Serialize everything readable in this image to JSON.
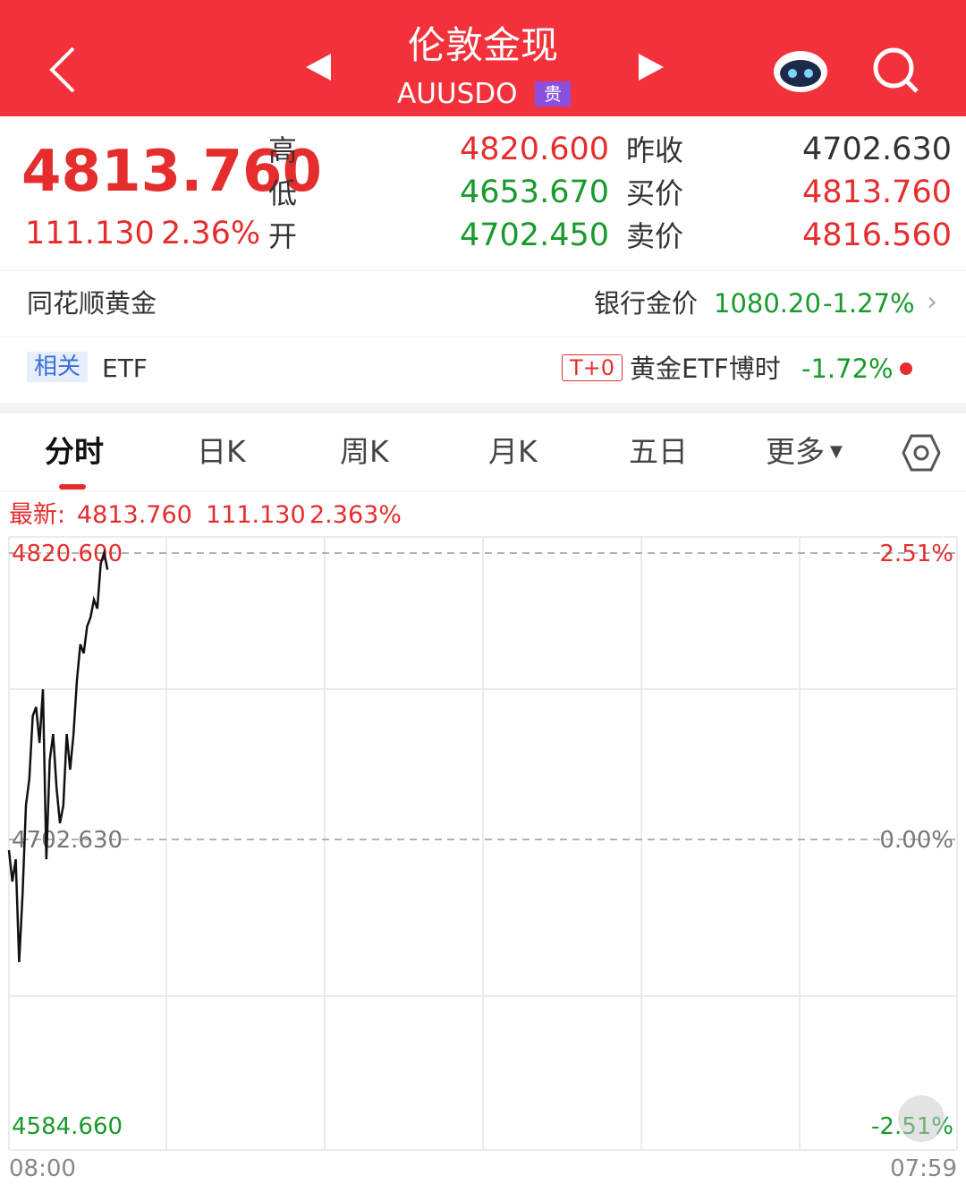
{
  "header": {
    "title": "伦敦金现",
    "code": "AUUSDO",
    "badge": "贵"
  },
  "quote": {
    "price": "4813.760",
    "change": "111.130",
    "change_pct": "2.36%",
    "left_stats": [
      {
        "label": "高",
        "value": "4820.600"
      },
      {
        "label": "低",
        "value": "4653.670"
      },
      {
        "label": "开",
        "value": "4702.450"
      }
    ],
    "right_stats": [
      {
        "label": "昨收",
        "value": "4702.630"
      },
      {
        "label": "买价",
        "value": "4813.760"
      },
      {
        "label": "卖价",
        "value": "4816.560"
      }
    ]
  },
  "gold_row": {
    "name": "同花顺黄金",
    "bank_label": "银行金价",
    "bank_price": "1080.20",
    "bank_change": "-1.27%"
  },
  "etf_row": {
    "tag": "相关",
    "name": "ETF",
    "t0": "T+0",
    "etf_name": "黄金ETF博时",
    "etf_change": "-1.72%"
  },
  "tabs": [
    "分时",
    "日K",
    "周K",
    "月K",
    "五日",
    "更多"
  ],
  "latest": {
    "label": "最新:",
    "price": "4813.760",
    "change": "111.130",
    "change_pct": "2.363%"
  },
  "chart_data": {
    "type": "line",
    "color": "#111111",
    "x_labels": [
      "08:00",
      "07:59"
    ],
    "values": [
      4698.2,
      4685.3,
      4694.5,
      4652.1,
      4679.8,
      4716.6,
      4727.7,
      4753.5,
      4757.2,
      4742.4,
      4764.5,
      4694.5,
      4735.1,
      4746.1,
      4724.0,
      4709.3,
      4716.6,
      4746.1,
      4731.4,
      4746.1,
      4768.2,
      4783.0,
      4779.3,
      4790.4,
      4794.1,
      4801.4,
      4797.7,
      4816.2,
      4820.6,
      4813.76
    ],
    "ylim": [
      4584.66,
      4820.6
    ],
    "yticks": [
      {
        "value": 4820.6,
        "label": "4820.600"
      },
      {
        "value": 4702.63,
        "label": "4702.630"
      },
      {
        "value": 4584.66,
        "label": "4584.660"
      }
    ],
    "y2lim": [
      -2.51,
      2.51
    ],
    "y2ticks": [
      {
        "value": 2.51,
        "label": "2.51%"
      },
      {
        "value": 0,
        "label": "0.00%"
      },
      {
        "value": -2.51,
        "label": "-2.51%"
      }
    ]
  }
}
